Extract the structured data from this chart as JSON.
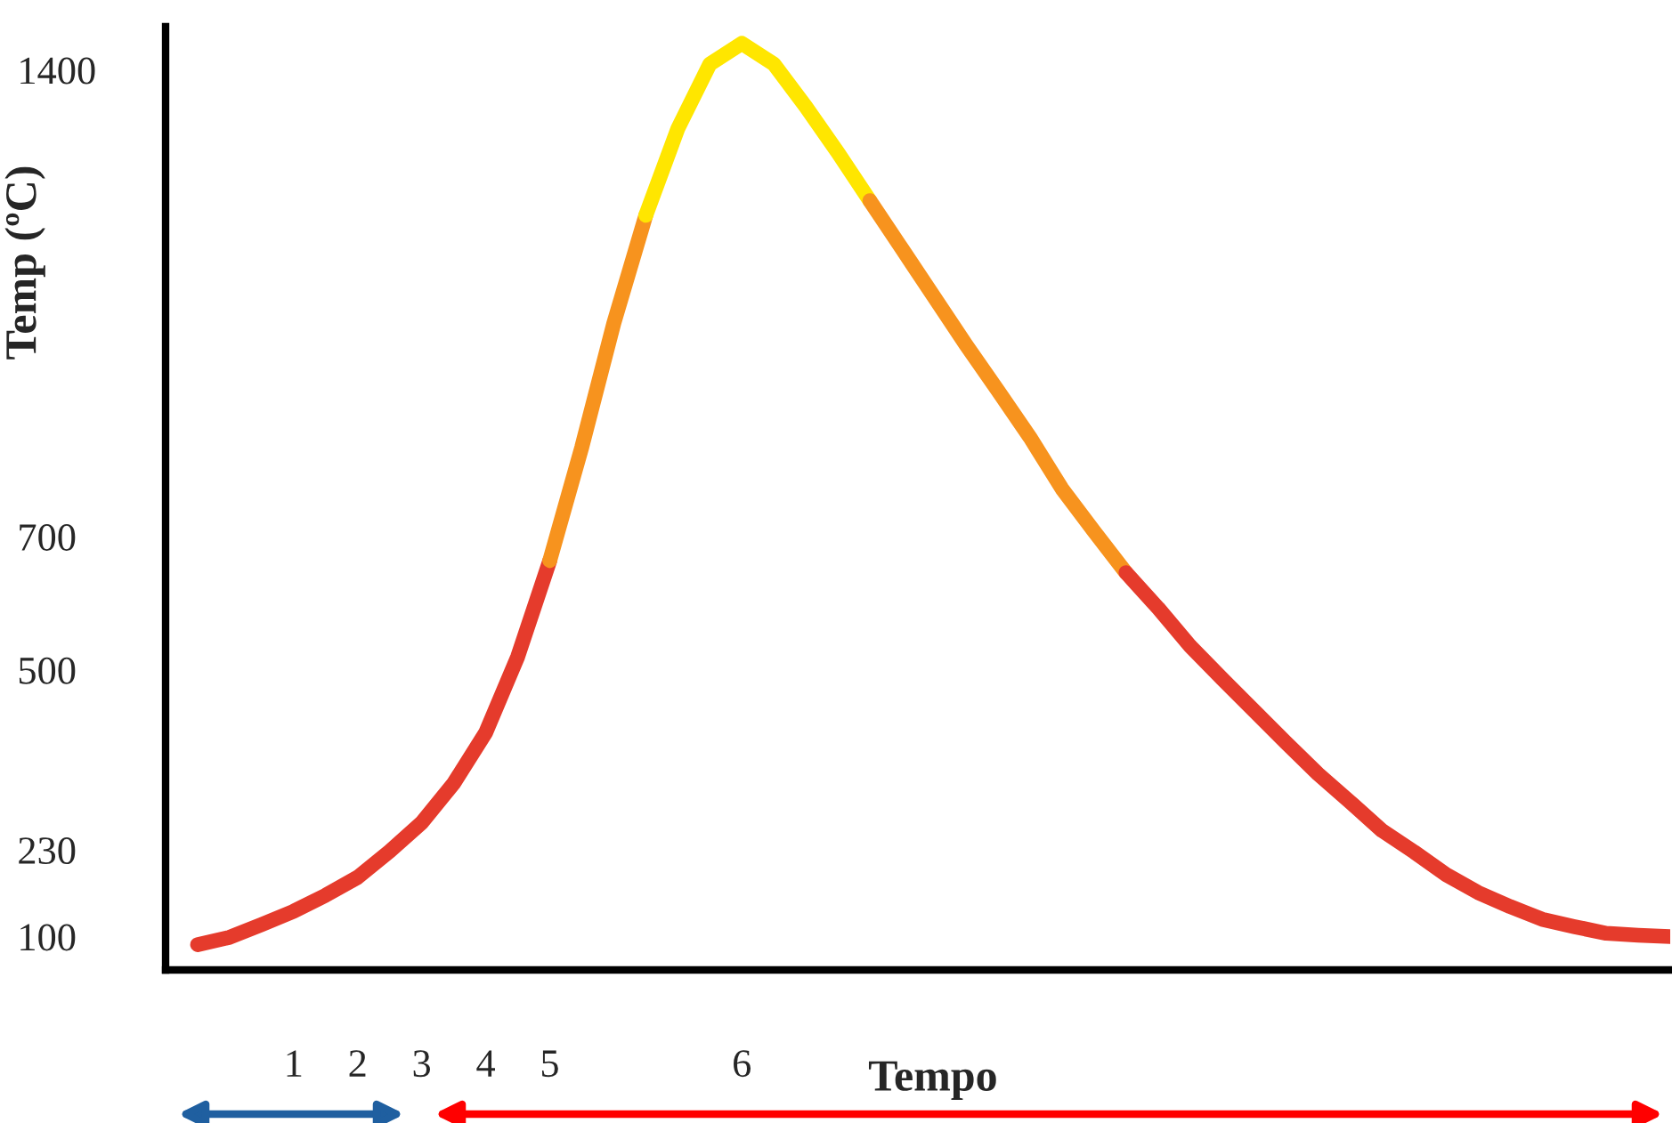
{
  "chart_data": {
    "type": "line",
    "xlabel": "Tempo",
    "ylabel": "Temp (ºC)",
    "categories": [
      null,
      null,
      null,
      null,
      "1",
      null,
      "2",
      null,
      "3",
      null,
      "4",
      null,
      "5",
      null,
      null,
      null,
      null,
      null,
      "6",
      null,
      null,
      null,
      null,
      null,
      null,
      null,
      null,
      null,
      null,
      null,
      null,
      null,
      null,
      null,
      null,
      null,
      null,
      null,
      null,
      null,
      null,
      null,
      null,
      null,
      null,
      null,
      null,
      null
    ],
    "ylim": [
      50,
      1465
    ],
    "yticks": [
      100,
      230,
      500,
      700,
      1400
    ],
    "grid": false,
    "legend": false,
    "marker": "none",
    "line_style": "solid",
    "series": [
      {
        "color": "#e53b2c",
        "values": [
          null,
          88,
          99,
          118,
          138,
          162,
          189,
          228,
          271,
          330,
          406,
          520,
          664,
          null,
          null,
          null,
          null,
          null,
          null,
          null,
          null,
          null,
          null,
          null,
          null,
          null,
          null,
          null,
          null,
          null,
          null,
          null,
          null,
          null,
          null,
          null,
          null,
          null,
          null,
          null,
          null,
          null,
          null,
          null,
          null,
          null,
          null,
          null
        ]
      },
      {
        "color": "#f7931e",
        "values": [
          null,
          null,
          null,
          null,
          null,
          null,
          null,
          null,
          null,
          null,
          null,
          null,
          664,
          834,
          1020,
          1182,
          null,
          null,
          null,
          null,
          null,
          null,
          null,
          null,
          null,
          null,
          null,
          null,
          null,
          null,
          null,
          null,
          null,
          null,
          null,
          null,
          null,
          null,
          null,
          null,
          null,
          null,
          null,
          null,
          null,
          null,
          null,
          null
        ]
      },
      {
        "color": "#ffe600",
        "values": [
          null,
          null,
          null,
          null,
          null,
          null,
          null,
          null,
          null,
          null,
          null,
          null,
          null,
          null,
          null,
          1182,
          1312,
          1409,
          1440,
          1409,
          1345,
          1276,
          1204,
          null,
          null,
          null,
          null,
          null,
          null,
          null,
          null,
          null,
          null,
          null,
          null,
          null,
          null,
          null,
          null,
          null,
          null,
          null,
          null,
          null,
          null,
          null,
          null,
          null
        ]
      },
      {
        "color": "#f7931e",
        "values": [
          null,
          null,
          null,
          null,
          null,
          null,
          null,
          null,
          null,
          null,
          null,
          null,
          null,
          null,
          null,
          null,
          null,
          null,
          null,
          null,
          null,
          null,
          1204,
          1132,
          1060,
          988,
          919,
          849,
          772,
          708,
          646,
          null,
          null,
          null,
          null,
          null,
          null,
          null,
          null,
          null,
          null,
          null,
          null,
          null,
          null,
          null,
          null,
          null
        ]
      },
      {
        "color": "#e53b2c",
        "values": [
          null,
          null,
          null,
          null,
          null,
          null,
          null,
          null,
          null,
          null,
          null,
          null,
          null,
          null,
          null,
          null,
          null,
          null,
          null,
          null,
          null,
          null,
          null,
          null,
          null,
          null,
          null,
          null,
          null,
          null,
          646,
          593,
          536,
          487,
          439,
          391,
          344,
          302,
          259,
          227,
          193,
          166,
          145,
          126,
          115,
          105,
          102,
          100
        ]
      }
    ]
  }
}
